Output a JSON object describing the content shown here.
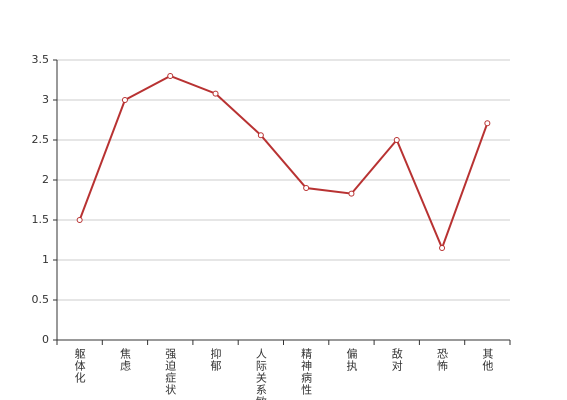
{
  "chart_data": {
    "type": "line",
    "categories": [
      "躯体化",
      "焦虑",
      "强迫症状",
      "抑郁",
      "人际关系敏感",
      "精神病性",
      "偏执",
      "敌对",
      "恐怖",
      "其他"
    ],
    "series": [
      {
        "name": "",
        "color": "#b83232",
        "values": [
          1.5,
          3.0,
          3.3,
          3.08,
          2.56,
          1.9,
          1.83,
          2.5,
          1.15,
          2.71
        ]
      }
    ],
    "ylim": [
      0,
      3.5
    ],
    "yticks": [
      0,
      0.5,
      1,
      1.5,
      2,
      2.5,
      3,
      3.5
    ],
    "grid": true
  }
}
